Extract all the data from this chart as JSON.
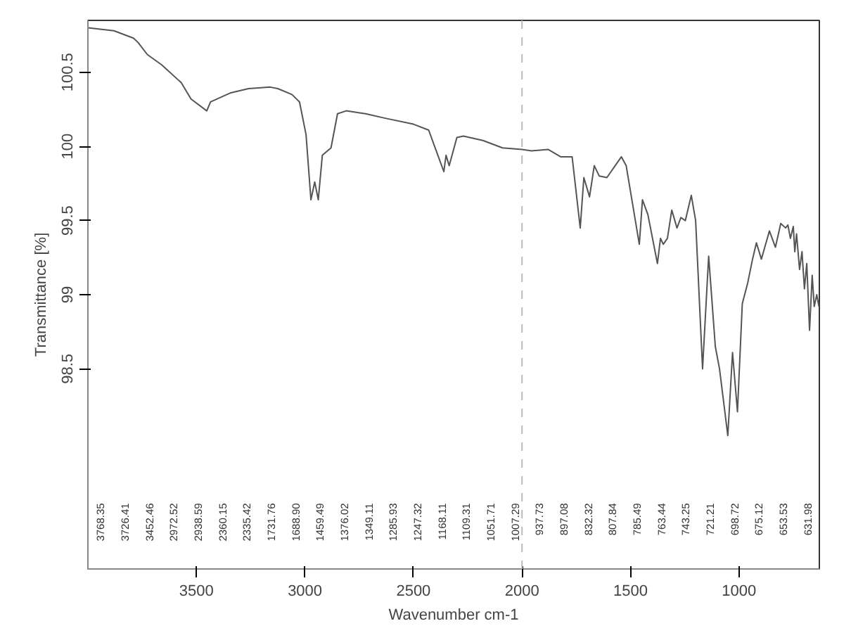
{
  "chart_data": {
    "type": "line",
    "xlabel": "Wavenumber cm-1",
    "ylabel": "Transmittance [%]",
    "xlim": [
      4000,
      630
    ],
    "ylim": [
      97.15,
      100.85
    ],
    "xticks": [
      3500,
      3000,
      2500,
      2000,
      1500,
      1000
    ],
    "yticks": [
      98.5,
      99.0,
      99.5,
      100.0,
      100.5
    ],
    "marker": "none",
    "line_style": "solid",
    "ref_lines": [
      {
        "axis": "x",
        "value": 2000,
        "label": null,
        "color": "#bbbbbb",
        "line_style": "dashed"
      }
    ],
    "series": [
      {
        "color": "#555555",
        "x": [
          4000,
          3880,
          3790,
          3768.35,
          3726.41,
          3660,
          3570,
          3525,
          3452.46,
          3435,
          3345,
          3260,
          3160,
          3125,
          3060,
          3025,
          2995,
          2972.52,
          2955,
          2938.59,
          2920,
          2880,
          2850,
          2810,
          2720,
          2630,
          2500,
          2430,
          2400,
          2360.15,
          2350,
          2335.42,
          2300,
          2270,
          2180,
          2090,
          2000,
          1956,
          1880,
          1822,
          1769,
          1731.76,
          1715,
          1688.9,
          1667,
          1644,
          1609,
          1542,
          1520,
          1459.49,
          1445,
          1420,
          1376.02,
          1362,
          1349.11,
          1330,
          1310,
          1285.93,
          1268,
          1247.32,
          1220,
          1200,
          1168.11,
          1140,
          1109.31,
          1090,
          1051.71,
          1030,
          1007.29,
          985,
          960,
          937.73,
          920,
          897.08,
          860,
          832.32,
          807.84,
          785.49,
          775,
          763.44,
          750,
          743.25,
          735,
          721.21,
          710,
          698.72,
          688,
          675.12,
          663,
          653.53,
          642,
          631.98
        ],
        "values": [
          100.8,
          100.78,
          100.73,
          100.7,
          100.62,
          100.55,
          100.43,
          100.32,
          100.24,
          100.3,
          100.36,
          100.39,
          100.4,
          100.39,
          100.35,
          100.3,
          100.08,
          99.64,
          99.76,
          99.64,
          99.94,
          99.99,
          100.22,
          100.24,
          100.22,
          100.19,
          100.15,
          100.11,
          99.99,
          99.83,
          99.94,
          99.87,
          100.06,
          100.07,
          100.04,
          99.99,
          99.98,
          99.97,
          99.98,
          99.93,
          99.93,
          99.45,
          99.79,
          99.66,
          99.87,
          99.8,
          99.79,
          99.93,
          99.87,
          99.34,
          99.64,
          99.54,
          99.21,
          99.38,
          99.34,
          99.38,
          99.57,
          99.45,
          99.52,
          99.5,
          99.67,
          99.5,
          98.5,
          99.26,
          98.65,
          98.5,
          98.05,
          98.61,
          98.21,
          98.94,
          99.08,
          99.24,
          99.35,
          99.24,
          99.43,
          99.32,
          99.48,
          99.45,
          99.47,
          99.38,
          99.46,
          99.29,
          99.41,
          99.17,
          99.29,
          99.04,
          99.21,
          98.76,
          99.13,
          98.92,
          99.0,
          98.92
        ]
      }
    ],
    "annotations": [
      "3768.35",
      "3726.41",
      "3452.46",
      "2972.52",
      "2938.59",
      "2360.15",
      "2335.42",
      "1731.76",
      "1688.90",
      "1459.49",
      "1376.02",
      "1349.11",
      "1285.93",
      "1247.32",
      "1168.11",
      "1109.31",
      "1051.71",
      "1007.29",
      "937.73",
      "897.08",
      "832.32",
      "807.84",
      "785.49",
      "763.44",
      "743.25",
      "721.21",
      "698.72",
      "675.12",
      "653.53",
      "631.98"
    ]
  }
}
